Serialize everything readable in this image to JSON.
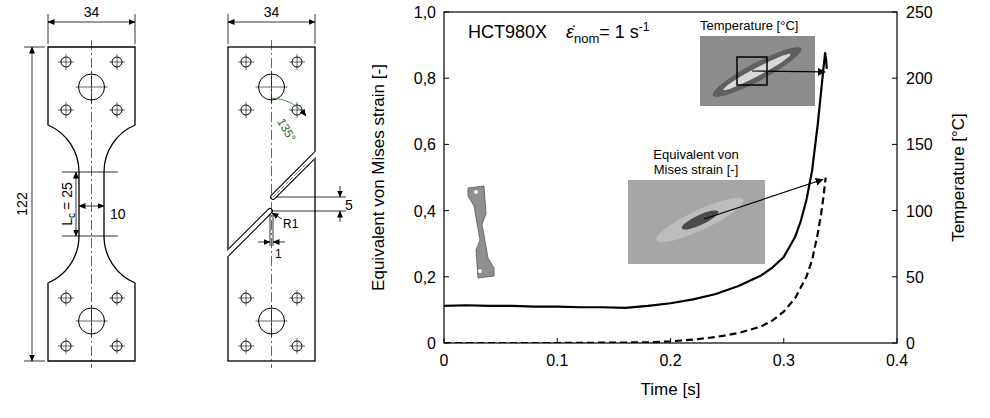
{
  "specimens": [
    {
      "width_label": "34",
      "height_label": "122",
      "neck_label": "10",
      "gauge_label": {
        "symbol": "L",
        "subscript": "c",
        "text": "= 25"
      }
    },
    {
      "width_label": "34",
      "angle_label": "135°",
      "offset_label": "5",
      "radius_label": "R1",
      "gap_label": "1"
    }
  ],
  "chart_data": {
    "type": "line",
    "title": "HCT980X",
    "rate_label": {
      "symbol": "ε̇",
      "subscript": "nom",
      "text": "= 1 s",
      "superscript": "-1"
    },
    "x_label": "Time [s]",
    "y_label": "Equivalent von Mises strain [-]",
    "y2_label": "Temperature [°C]",
    "xlim": [
      0,
      0.4
    ],
    "xticks": [
      0,
      0.1,
      0.2,
      0.3,
      0.4
    ],
    "ylim": [
      0,
      1
    ],
    "yticks": [
      0,
      {
        "value": 0.2,
        "label": "0,2"
      },
      {
        "value": 0.4,
        "label": "0,4"
      },
      {
        "value": 0.6,
        "label": "0,6"
      },
      {
        "value": 0.8,
        "label": "0,8"
      },
      {
        "value": 1,
        "label": "1,0"
      }
    ],
    "y2lim": [
      0,
      250
    ],
    "y2ticks": [
      0,
      50,
      100,
      150,
      200,
      250
    ],
    "series": [
      {
        "name": "Temperature [°C]",
        "axis": "y2",
        "color": "#000000",
        "line_style": "solid",
        "x": [
          0,
          0.02,
          0.04,
          0.06,
          0.08,
          0.1,
          0.12,
          0.14,
          0.16,
          0.18,
          0.2,
          0.22,
          0.24,
          0.26,
          0.28,
          0.29,
          0.3,
          0.31,
          0.315,
          0.32,
          0.325,
          0.33,
          0.333,
          0.335,
          0.3365,
          0.3375,
          0.338
        ],
        "values": [
          28,
          28.5,
          28,
          28,
          27.5,
          27.5,
          27,
          27,
          26.5,
          28,
          30,
          33,
          37,
          43,
          51,
          57,
          65,
          80,
          92,
          108,
          130,
          165,
          190,
          207,
          219,
          213,
          207
        ]
      },
      {
        "name": "Equivalent von Mises strain [-]",
        "axis": "y",
        "color": "#000000",
        "line_style": "dashed",
        "x": [
          0,
          0.1,
          0.18,
          0.2,
          0.22,
          0.24,
          0.26,
          0.28,
          0.29,
          0.3,
          0.31,
          0.32,
          0.325,
          0.33,
          0.333,
          0.335,
          0.337
        ],
        "values": [
          0,
          0,
          0.002,
          0.005,
          0.01,
          0.018,
          0.03,
          0.05,
          0.068,
          0.095,
          0.135,
          0.2,
          0.25,
          0.33,
          0.39,
          0.44,
          0.5
        ]
      }
    ]
  }
}
